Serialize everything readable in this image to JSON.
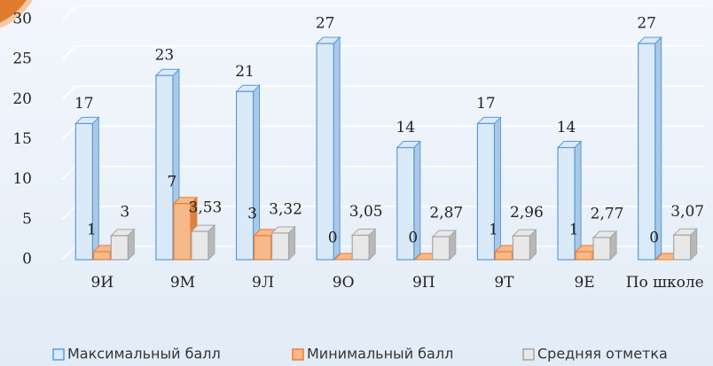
{
  "chart_data": {
    "type": "bar",
    "categories": [
      "9И",
      "9М",
      "9Л",
      "9О",
      "9П",
      "9Т",
      "9Е",
      "По школе"
    ],
    "series": [
      {
        "name": "Максимальный балл",
        "color": "#dbeaf9",
        "values": [
          17,
          23,
          21,
          27,
          14,
          17,
          14,
          27
        ]
      },
      {
        "name": "Минимальный балл",
        "color": "#f6b98a",
        "values": [
          1,
          7,
          3,
          0,
          0,
          1,
          1,
          0
        ]
      },
      {
        "name": "Средняя отметка",
        "color": "#e8e8e8",
        "values": [
          3,
          3.53,
          3.32,
          3.05,
          2.87,
          2.96,
          2.77,
          3.07
        ],
        "value_labels": [
          "3",
          "3,53",
          "3,32",
          "3,05",
          "2,87",
          "2,96",
          "2,77",
          "3,07"
        ]
      }
    ],
    "ylim": [
      0,
      30
    ],
    "yticks": [
      0,
      5,
      10,
      15,
      20,
      25,
      30
    ],
    "grid": true,
    "legend": "bottom"
  }
}
